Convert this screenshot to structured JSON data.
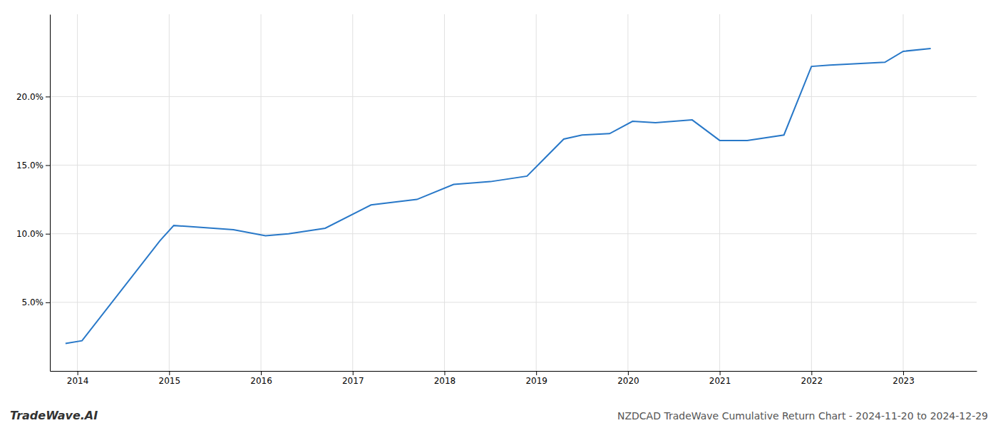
{
  "chart_data": {
    "type": "line",
    "title": "NZDCAD TradeWave Cumulative Return Chart - 2024-11-20 to 2024-12-29",
    "annotations": [
      "TradeWave.AI"
    ],
    "x": [
      2013.87,
      2014.05,
      2014.9,
      2015.05,
      2015.7,
      2016.05,
      2016.3,
      2016.7,
      2017.2,
      2017.7,
      2018.1,
      2018.5,
      2018.9,
      2019.3,
      2019.5,
      2019.8,
      2020.05,
      2020.3,
      2020.7,
      2021.0,
      2021.3,
      2021.7,
      2022.0,
      2022.2,
      2022.5,
      2022.8,
      2023.0,
      2023.3
    ],
    "values": [
      2.0,
      2.2,
      9.5,
      10.6,
      10.3,
      9.85,
      10.0,
      10.4,
      12.1,
      12.5,
      13.6,
      13.8,
      14.2,
      16.9,
      17.2,
      17.3,
      18.2,
      18.1,
      18.3,
      16.8,
      16.8,
      17.2,
      22.2,
      22.3,
      22.4,
      22.5,
      23.3,
      23.5
    ],
    "color": "#2878c8",
    "xlim": [
      2013.7,
      2023.8
    ],
    "ylim": [
      0.0,
      26.0
    ],
    "xticks": [
      2014,
      2015,
      2016,
      2017,
      2018,
      2019,
      2020,
      2021,
      2022,
      2023
    ],
    "yticks": [
      {
        "value": 5.0,
        "label": "5.0%"
      },
      {
        "value": 10.0,
        "label": "10.0%"
      },
      {
        "value": 15.0,
        "label": "15.0%"
      },
      {
        "value": 20.0,
        "label": "20.0%"
      }
    ],
    "grid": true
  }
}
